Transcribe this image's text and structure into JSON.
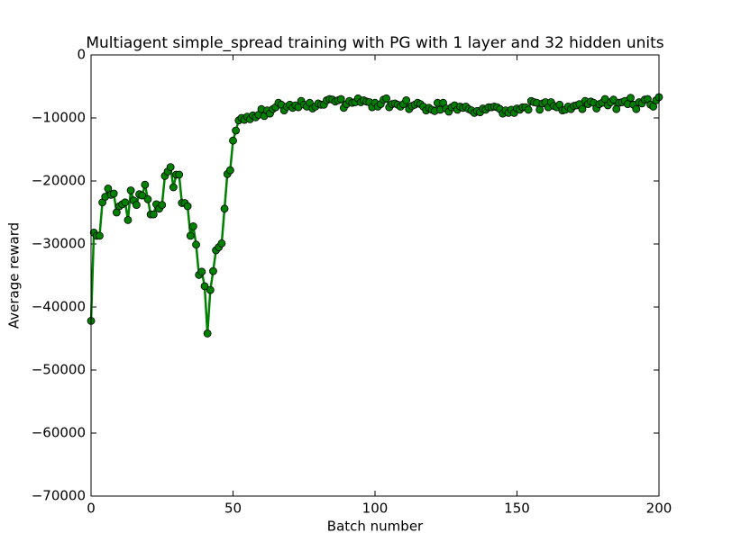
{
  "chart_data": {
    "type": "line",
    "title": "Multiagent simple_spread training with PG with 1 layer and 32 hidden units",
    "x_label": "Batch number",
    "y_label": "Average reward",
    "x": [
      0,
      1,
      2,
      3,
      4,
      5,
      6,
      7,
      8,
      9,
      10,
      11,
      12,
      13,
      14,
      15,
      16,
      17,
      18,
      19,
      20,
      21,
      22,
      23,
      24,
      25,
      26,
      27,
      28,
      29,
      30,
      31,
      32,
      33,
      34,
      35,
      36,
      37,
      38,
      39,
      40,
      41,
      42,
      43,
      44,
      45,
      46,
      47,
      48,
      49,
      50,
      51,
      52,
      53,
      54,
      55,
      56,
      57,
      58,
      59,
      60,
      61,
      62,
      63,
      64,
      65,
      66,
      67,
      68,
      69,
      70,
      71,
      72,
      73,
      74,
      75,
      76,
      77,
      78,
      79,
      80,
      81,
      82,
      83,
      84,
      85,
      86,
      87,
      88,
      89,
      90,
      91,
      92,
      93,
      94,
      95,
      96,
      97,
      98,
      99,
      100,
      101,
      102,
      103,
      104,
      105,
      106,
      107,
      108,
      109,
      110,
      111,
      112,
      113,
      114,
      115,
      116,
      117,
      118,
      119,
      120,
      121,
      122,
      123,
      124,
      125,
      126,
      127,
      128,
      129,
      130,
      131,
      132,
      133,
      134,
      135,
      136,
      137,
      138,
      139,
      140,
      141,
      142,
      143,
      144,
      145,
      146,
      147,
      148,
      149,
      150,
      151,
      152,
      153,
      154,
      155,
      156,
      157,
      158,
      159,
      160,
      161,
      162,
      163,
      164,
      165,
      166,
      167,
      168,
      169,
      170,
      171,
      172,
      173,
      174,
      175,
      176,
      177,
      178,
      179,
      180,
      181,
      182,
      183,
      184,
      185,
      186,
      187,
      188,
      189,
      190,
      191,
      192,
      193,
      194,
      195,
      196,
      197,
      198,
      199,
      200
    ],
    "series": [
      {
        "color": "#008000",
        "marker_edge": "#000000",
        "values": [
          -42200,
          -28200,
          -28700,
          -28700,
          -23400,
          -22500,
          -21200,
          -22200,
          -22000,
          -25000,
          -24000,
          -23700,
          -23400,
          -26200,
          -21500,
          -23100,
          -23800,
          -22100,
          -22300,
          -20600,
          -22900,
          -25300,
          -25300,
          -23700,
          -24400,
          -23800,
          -19200,
          -18500,
          -17800,
          -21000,
          -19000,
          -19000,
          -23500,
          -23500,
          -24000,
          -28700,
          -27200,
          -30100,
          -34900,
          -34400,
          -36700,
          -44200,
          -37300,
          -34300,
          -31000,
          -30500,
          -29900,
          -24400,
          -18900,
          -18300,
          -13600,
          -12000,
          -10400,
          -10000,
          -10300,
          -9800,
          -10200,
          -9600,
          -9900,
          -9500,
          -8600,
          -9700,
          -8800,
          -9300,
          -8600,
          -8300,
          -7600,
          -7900,
          -8800,
          -8200,
          -7900,
          -8400,
          -8000,
          -8300,
          -7300,
          -7900,
          -8200,
          -7600,
          -8500,
          -8200,
          -7700,
          -7900,
          -7900,
          -7200,
          -7000,
          -7100,
          -7400,
          -7200,
          -7000,
          -8400,
          -7800,
          -7300,
          -7600,
          -7500,
          -6900,
          -7500,
          -7200,
          -7400,
          -7500,
          -8300,
          -7600,
          -8200,
          -7800,
          -7100,
          -6900,
          -8300,
          -7800,
          -7700,
          -7900,
          -8200,
          -7800,
          -7200,
          -8600,
          -8100,
          -7900,
          -7600,
          -7800,
          -8200,
          -8800,
          -8400,
          -8700,
          -8900,
          -7600,
          -8700,
          -7600,
          -8500,
          -9000,
          -8300,
          -8000,
          -8700,
          -8200,
          -8400,
          -8200,
          -8600,
          -8800,
          -9200,
          -8900,
          -9100,
          -8500,
          -8700,
          -8300,
          -8300,
          -8200,
          -8300,
          -8600,
          -9300,
          -8800,
          -9200,
          -8700,
          -9200,
          -8500,
          -8700,
          -8300,
          -8300,
          -8700,
          -7300,
          -7500,
          -7600,
          -8700,
          -7700,
          -7500,
          -8300,
          -7500,
          -8100,
          -8300,
          -7900,
          -8800,
          -8700,
          -8200,
          -8600,
          -8100,
          -8000,
          -7800,
          -8600,
          -7300,
          -7800,
          -7400,
          -7600,
          -8500,
          -7800,
          -7600,
          -7000,
          -8000,
          -7500,
          -7100,
          -8600,
          -7600,
          -7500,
          -7300,
          -7800,
          -6800,
          -7900,
          -8600,
          -7500,
          -7700,
          -7100,
          -7000,
          -7900,
          -8200,
          -7200,
          -6700
        ]
      }
    ],
    "xlim": [
      0,
      200
    ],
    "xticks": [
      0,
      50,
      100,
      150,
      200
    ],
    "ylim": [
      -70000,
      0
    ],
    "yticks": [
      {
        "value": -70000,
        "label": "−70000"
      },
      {
        "value": -60000,
        "label": "−60000"
      },
      {
        "value": -50000,
        "label": "−50000"
      },
      {
        "value": -40000,
        "label": "−40000"
      },
      {
        "value": -30000,
        "label": "−30000"
      },
      {
        "value": -20000,
        "label": "−20000"
      },
      {
        "value": -10000,
        "label": "−10000"
      },
      0
    ],
    "grid": false
  }
}
